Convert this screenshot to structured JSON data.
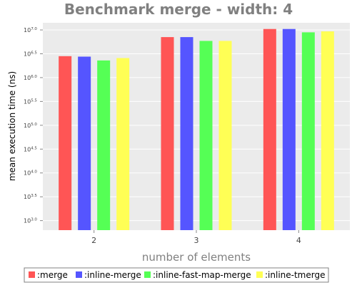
{
  "chart_data": {
    "type": "bar",
    "title": "Benchmark merge - width: 4",
    "xlabel": "number of elements",
    "ylabel": "mean execution time (ns)",
    "y_scale": "log10",
    "ylim": [
      2.8,
      7.15
    ],
    "y_tick_base": "10",
    "y_tick_exponents": [
      "3.0",
      "3.5",
      "4.0",
      "4.5",
      "5.0",
      "5.5",
      "6.0",
      "6.5",
      "7.0"
    ],
    "categories": [
      "2",
      "3",
      "4"
    ],
    "series": [
      {
        "name": ":merge",
        "color": "#ff5555",
        "exponents": [
          6.45,
          6.85,
          7.02
        ]
      },
      {
        "name": ":inline-merge",
        "color": "#5555ff",
        "exponents": [
          6.44,
          6.85,
          7.02
        ]
      },
      {
        "name": ":inline-fast-map-merge",
        "color": "#55ff55",
        "exponents": [
          6.36,
          6.77,
          6.95
        ]
      },
      {
        "name": ":inline-tmerge",
        "color": "#ffff55",
        "exponents": [
          6.41,
          6.77,
          6.97
        ]
      }
    ],
    "grid": true,
    "legend_position": "bottom"
  }
}
